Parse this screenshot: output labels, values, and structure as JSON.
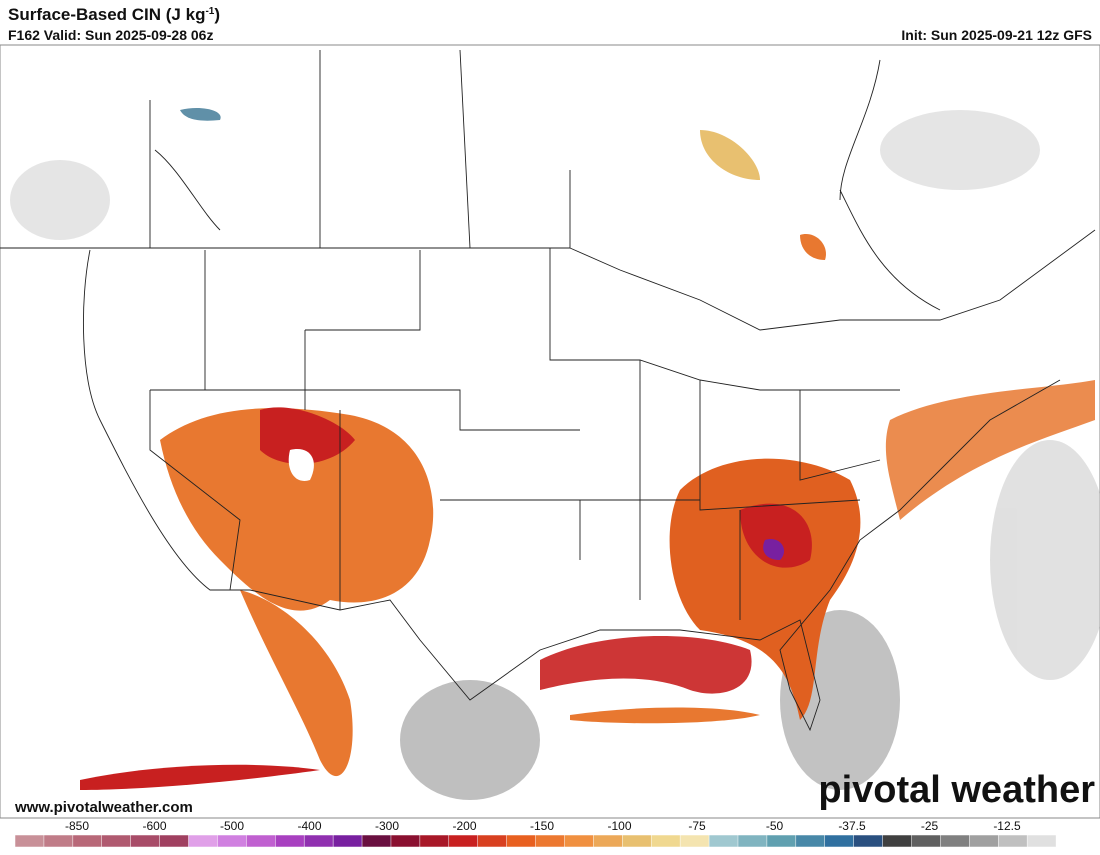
{
  "header": {
    "title": {
      "text": "Surface-Based CIN (J kg",
      "sup": "-1",
      "close": ")"
    },
    "valid": "F162 Valid: Sun 2025-09-28 06z",
    "init": "Init: Sun 2025-09-21 12z GFS"
  },
  "footer": {
    "url": "www.pivotalweather.com",
    "logo": "pivotal weather"
  },
  "colorbar": {
    "labels": [
      "-850",
      "-600",
      "-500",
      "-400",
      "-300",
      "-200",
      "-150",
      "-100",
      "-75",
      "-50",
      "-37.5",
      "-25",
      "-12.5"
    ],
    "colors": [
      "#c89098",
      "#c07c88",
      "#b86878",
      "#b05a70",
      "#a84c68",
      "#a04060",
      "#e0a0e8",
      "#d080e0",
      "#c060d0",
      "#a840c0",
      "#9030b0",
      "#7820a0",
      "#6a1040",
      "#8a1030",
      "#a81828",
      "#c82020",
      "#d84020",
      "#e86020",
      "#ec7830",
      "#f09040",
      "#eca858",
      "#e8c070",
      "#f0d890",
      "#f4e4b0",
      "#a0c8d0",
      "#80b4c0",
      "#60a0b0",
      "#4888a8",
      "#3070a0",
      "#2a5080",
      "#404040",
      "#606060",
      "#808080",
      "#a0a0a0",
      "#c0c0c0",
      "#e0e0e0",
      "#ffffff"
    ]
  }
}
